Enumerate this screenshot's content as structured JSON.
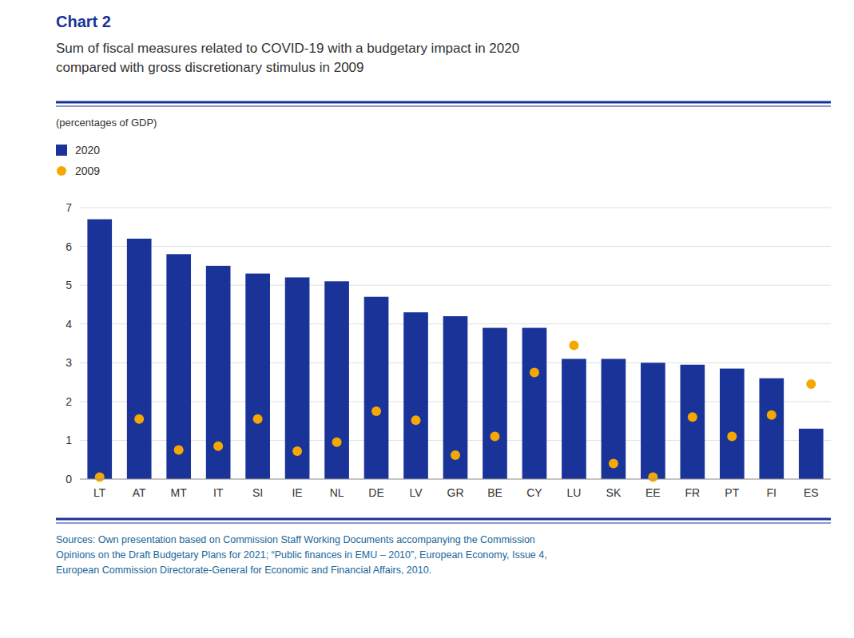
{
  "chart_data": {
    "type": "bar",
    "title": "Chart 2",
    "subtitle": "Sum of fiscal measures related to COVID-19 with a budgetary impact in 2020\ncompared with gross discretionary stimulus in 2009",
    "y_label": "(percentages of GDP)",
    "categories": [
      "LT",
      "AT",
      "MT",
      "IT",
      "SI",
      "IE",
      "NL",
      "DE",
      "LV",
      "GR",
      "BE",
      "CY",
      "LU",
      "SK",
      "EE",
      "FR",
      "PT",
      "FI",
      "ES"
    ],
    "series": [
      {
        "name": "2020",
        "type": "bar",
        "color": "#1a3399",
        "values": [
          6.7,
          6.2,
          5.8,
          5.5,
          5.3,
          5.2,
          5.1,
          4.7,
          4.3,
          4.2,
          3.9,
          3.9,
          3.1,
          3.1,
          3.0,
          2.95,
          2.85,
          2.6,
          1.3
        ]
      },
      {
        "name": "2009",
        "type": "scatter",
        "marker": "circle",
        "color": "#f5a800",
        "values": [
          0.05,
          1.55,
          0.75,
          0.85,
          1.55,
          0.72,
          0.95,
          1.75,
          1.52,
          0.62,
          1.1,
          2.75,
          3.45,
          0.4,
          0.05,
          1.6,
          1.1,
          1.65,
          2.45
        ]
      }
    ],
    "ylim": [
      0,
      7
    ],
    "yticks": [
      0,
      1,
      2,
      3,
      4,
      5,
      6,
      7
    ],
    "grid": true,
    "legend": "top-left",
    "source": [
      "Sources: Own presentation based on Commission Staff Working Documents accompanying the Commission",
      "Opinions on the Draft Budgetary Plans for 2021; “Public finances in EMU – 2010”, European Economy, Issue 4,",
      "European Commission Directorate-General for Economic and Financial Affairs, 2010."
    ]
  }
}
